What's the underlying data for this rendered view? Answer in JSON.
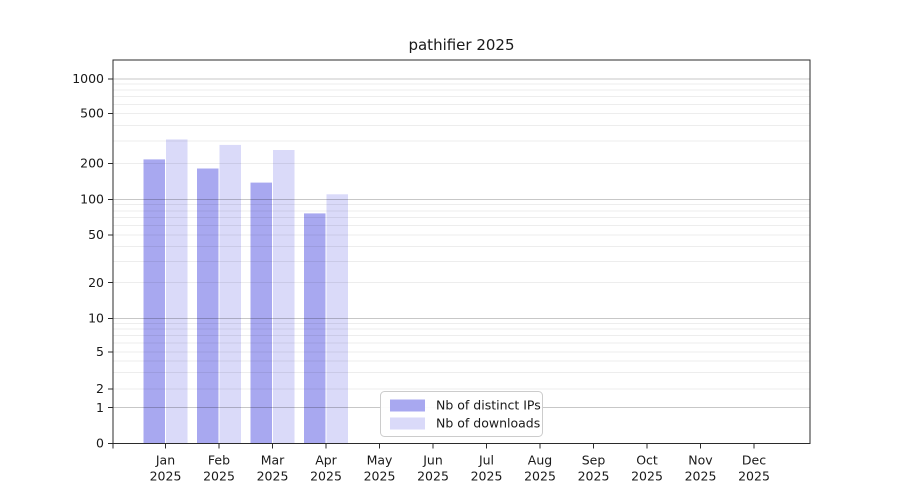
{
  "figure": {
    "background": "#ffffff"
  },
  "chart_data": {
    "type": "bar",
    "title": "pathifier 2025",
    "categories": [
      {
        "line1": "Jan",
        "line2": "2025"
      },
      {
        "line1": "Feb",
        "line2": "2025"
      },
      {
        "line1": "Mar",
        "line2": "2025"
      },
      {
        "line1": "Apr",
        "line2": "2025"
      },
      {
        "line1": "May",
        "line2": "2025"
      },
      {
        "line1": "Jun",
        "line2": "2025"
      },
      {
        "line1": "Jul",
        "line2": "2025"
      },
      {
        "line1": "Aug",
        "line2": "2025"
      },
      {
        "line1": "Sep",
        "line2": "2025"
      },
      {
        "line1": "Oct",
        "line2": "2025"
      },
      {
        "line1": "Nov",
        "line2": "2025"
      },
      {
        "line1": "Dec",
        "line2": "2025"
      }
    ],
    "series": [
      {
        "name": "Nb of distinct IPs",
        "color": "#a8a8f0",
        "values": [
          215,
          181,
          138,
          76,
          null,
          null,
          null,
          null,
          null,
          null,
          null,
          null
        ]
      },
      {
        "name": "Nb of downloads",
        "color": "#dadaf9",
        "values": [
          310,
          280,
          255,
          110,
          null,
          null,
          null,
          null,
          null,
          null,
          null,
          null
        ]
      }
    ],
    "y_axis": {
      "scale": "symlog",
      "tick_values": [
        0,
        1,
        2,
        5,
        10,
        20,
        50,
        100,
        200,
        500,
        1000
      ],
      "tick_labels": [
        "0",
        "1",
        "2",
        "5",
        "10",
        "20",
        "50",
        "100",
        "200",
        "500",
        "1000"
      ],
      "range_top_value": 1400
    },
    "grid": {
      "major_values": [
        1,
        10,
        100,
        1000
      ],
      "minor_values": [
        2,
        3,
        4,
        5,
        6,
        7,
        8,
        9,
        20,
        30,
        40,
        50,
        60,
        70,
        80,
        90,
        200,
        300,
        400,
        500,
        600,
        700,
        800,
        900
      ],
      "major_color": "rgba(0,0,0,0.22)",
      "minor_color": "rgba(0,0,0,0.07)"
    },
    "legend": {
      "position": "inside-bottom-center",
      "entries": [
        "Nb of distinct IPs",
        "Nb of downloads"
      ],
      "border_color": "#cccccc",
      "background": "#ffffff"
    },
    "spine_color": "#2b2b2b"
  }
}
